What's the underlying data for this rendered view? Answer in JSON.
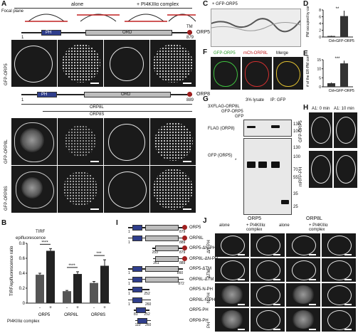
{
  "panels": {
    "A": {
      "label": "A",
      "focal_plane": "Focal plane",
      "col_alone": "alone",
      "col_complex": "+ PI4KIIIα complex",
      "row1": "GFP-ORP5",
      "row2": "GFP-ORP8L",
      "row3": "GFP-ORP8S",
      "orp5": {
        "ph": "PH",
        "orp": "ORD",
        "tm": "TM",
        "name": "ORP5",
        "start": "1",
        "end": "879"
      },
      "orp8": {
        "ph": "PH",
        "orp": "ORD",
        "name": "ORP8",
        "start": "1",
        "end": "889",
        "s_start": "1",
        "s_label": "ORP8L",
        "s2_label": "ORP8S"
      }
    },
    "B": {
      "label": "B",
      "tirf": "TIRF",
      "epi": "epifluorescence",
      "ylabel": "TIRF/epifluorescence ratio",
      "complex_label": "PI4KIIIα complex",
      "minus": "-",
      "plus": "+",
      "sig": [
        "****",
        "****",
        "***"
      ]
    },
    "C": {
      "label": "C",
      "title": "+ GFP-ORP5"
    },
    "D": {
      "label": "D",
      "ylabel": "PM occupied by contacts (%)",
      "sig": "**"
    },
    "E": {
      "label": "E",
      "ylabel": "# of the ER-PM contact sites/100 μm",
      "sig": "***"
    },
    "F": {
      "label": "F",
      "c1": "GFP-ORP5",
      "c2": "mCh-ORP8L",
      "c3": "Merge"
    },
    "G": {
      "label": "G",
      "lysate": "3% lysate",
      "ip": "IP: GFP",
      "rows": [
        "3XFLAG-ORP8L",
        "GFP-ORP5",
        "GFP"
      ],
      "plus": "+",
      "minus": "-",
      "blot1": "FLAG (ORP8)",
      "blot2": "GFP (ORP5)",
      "star": "*",
      "mw": [
        "130",
        "100",
        "130",
        "100",
        "70",
        "55",
        "35",
        "25"
      ]
    },
    "H": {
      "label": "H",
      "t0": "A1: 0 min",
      "t10": "A1: 10 min",
      "r1": "GFP-ORP5",
      "r2": "mRFP-PH"
    },
    "I": {
      "label": "I",
      "ph": "PH",
      "orp": "ORD",
      "constructs": [
        "ORP5",
        "ORP8L",
        "ORP5-ΔN-PH",
        "ORP8L-ΔN-PH",
        "ORP5-ΔTM",
        "ORP8L-ΔTM",
        "ORP5-N-PH",
        "ORP8L-N-PH",
        "ORP5-PH",
        "ORP8-PH"
      ],
      "nums": [
        "1",
        "879",
        "1",
        "889",
        "253",
        "879",
        "261",
        "889",
        "1",
        "860",
        "1",
        "872",
        "1",
        "252",
        "1",
        "260",
        "81",
        "252",
        "110",
        "260"
      ]
    },
    "J": {
      "label": "J",
      "g1": "ORP5",
      "g2": "ORP8L",
      "alone": "alone",
      "complex": "+ PI4KIIIα complex",
      "rows": [
        "ΔN-PH",
        "ΔTM",
        "N-PH",
        "PH"
      ]
    }
  },
  "chart_data": [
    {
      "type": "bar",
      "title": "",
      "ylabel": "TIRF/epifluorescence ratio",
      "ylim": [
        0,
        0.8
      ],
      "yticks": [
        "0",
        "0.2",
        "0.4",
        "0.6",
        "0.8"
      ],
      "categories": [
        "ORP5",
        "ORP8L",
        "ORP8S"
      ],
      "series": [
        {
          "values": [
            0.38,
            0.16,
            0.27
          ]
        },
        {
          "values": [
            0.7,
            0.39,
            0.5
          ]
        }
      ],
      "errors": [
        [
          0.02,
          0.01,
          0.02
        ],
        [
          0.03,
          0.03,
          0.08
        ]
      ]
    },
    {
      "type": "bar",
      "ylabel": "PM occupied by contacts (%)",
      "ylim": [
        0,
        8
      ],
      "yticks": [
        "0",
        "2",
        "4",
        "6",
        "8"
      ],
      "categories": [
        "Ctrl",
        "+GFP-ORP5"
      ],
      "values": [
        0.3,
        6.2
      ],
      "errors": [
        0.1,
        1.6
      ]
    },
    {
      "type": "bar",
      "ylabel": "# of the ER-PM contact sites/100 μm",
      "ylim": [
        0,
        15
      ],
      "yticks": [
        "0",
        "5",
        "10",
        "15"
      ],
      "categories": [
        "Ctrl",
        "+GFP-ORP5"
      ],
      "values": [
        2,
        13
      ],
      "errors": [
        0.4,
        1.5
      ]
    }
  ]
}
